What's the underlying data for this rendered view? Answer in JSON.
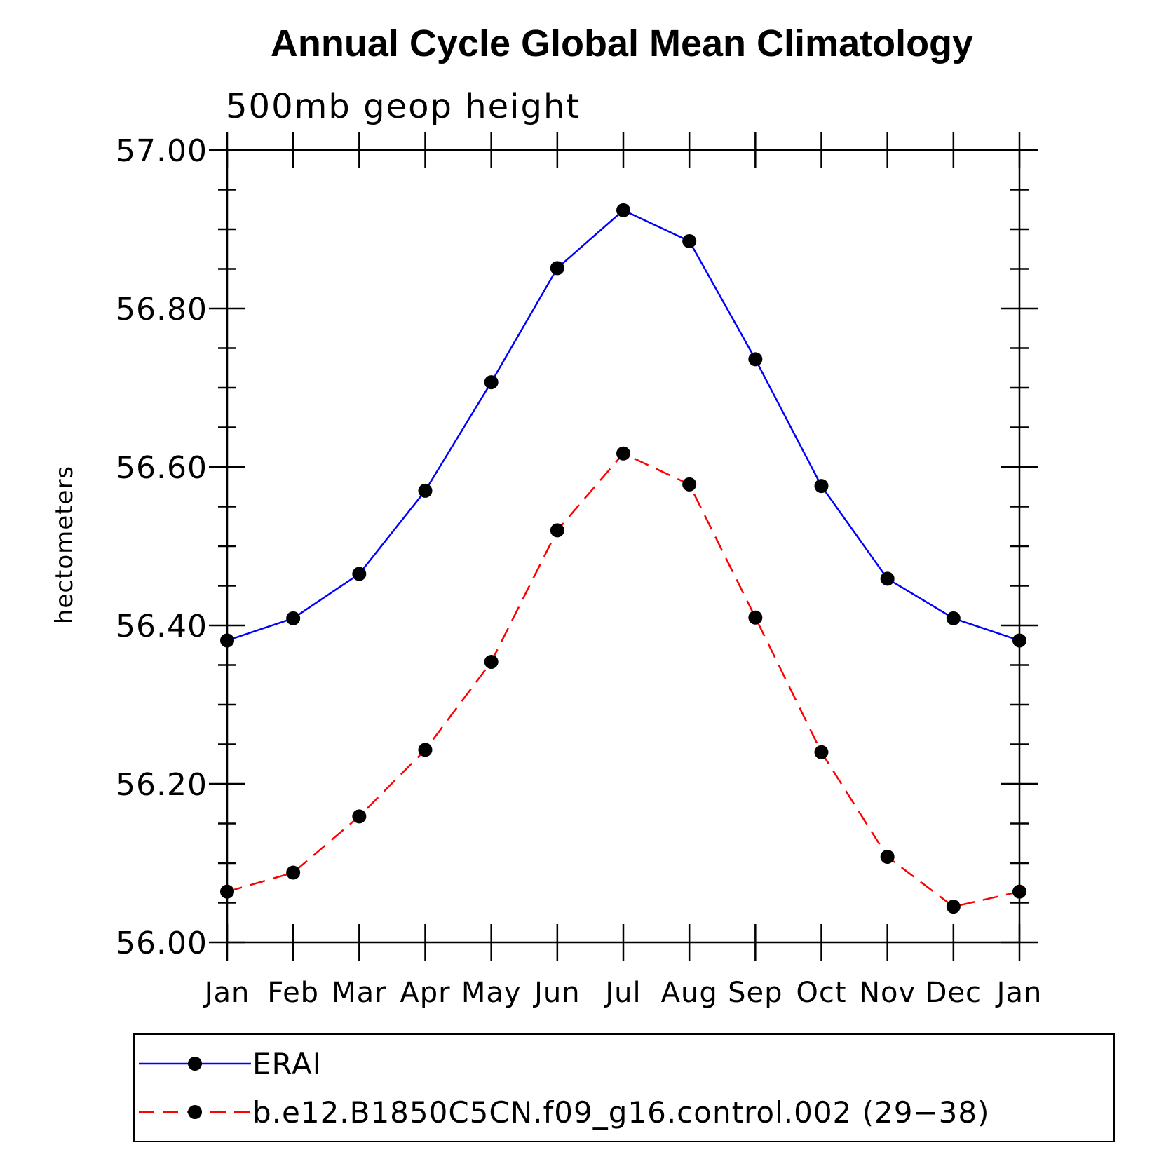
{
  "chart_data": {
    "type": "line",
    "title": "Annual Cycle Global Mean Climatology",
    "subtitle": "500mb geop height",
    "xlabel": "",
    "ylabel": "hectometers",
    "categories": [
      "Jan",
      "Feb",
      "Mar",
      "Apr",
      "May",
      "Jun",
      "Jul",
      "Aug",
      "Sep",
      "Oct",
      "Nov",
      "Dec",
      "Jan"
    ],
    "ylim": [
      56.0,
      57.0
    ],
    "yticks": [
      "56.00",
      "56.20",
      "56.40",
      "56.60",
      "56.80",
      "57.00"
    ],
    "grid": false,
    "legend_position": "bottom",
    "series": [
      {
        "name": "ERAI",
        "color": "#0000ff",
        "dash": "solid",
        "marker": "filled-circle",
        "values": [
          56.381,
          56.409,
          56.465,
          56.57,
          56.707,
          56.851,
          56.924,
          56.885,
          56.736,
          56.576,
          56.459,
          56.409,
          56.381
        ]
      },
      {
        "name": "b.e12.B1850C5CN.f09_g16.control.002 (29−38)",
        "color": "#ff0000",
        "dash": "dashed",
        "marker": "filled-circle",
        "values": [
          56.064,
          56.088,
          56.159,
          56.243,
          56.354,
          56.52,
          56.617,
          56.578,
          56.41,
          56.24,
          56.108,
          56.045,
          56.064
        ]
      }
    ]
  }
}
